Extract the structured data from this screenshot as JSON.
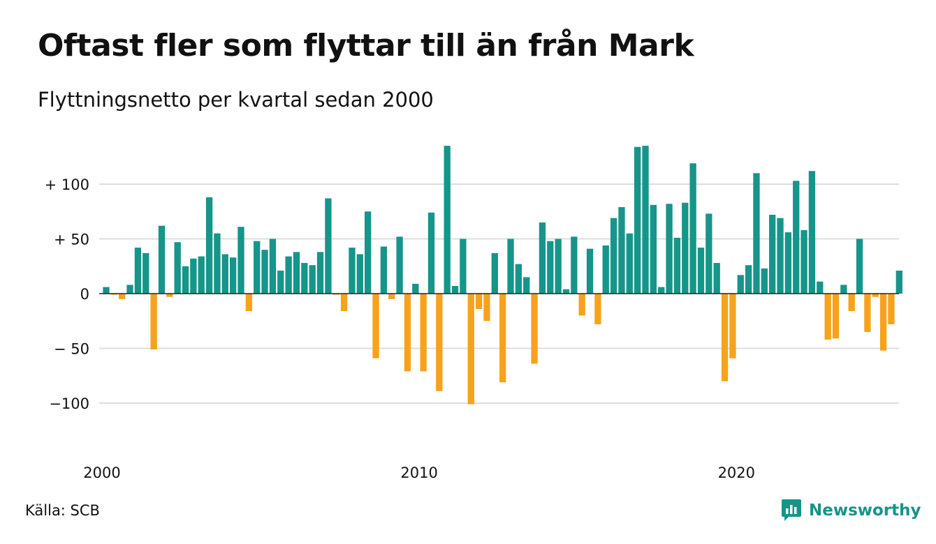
{
  "chart_data": {
    "type": "bar",
    "title": "Oftast fler som flyttar till än från Mark",
    "subtitle": "Flyttningsnetto per kvartal sedan 2000",
    "xlabel": "",
    "ylabel": "",
    "ylim": [
      -125,
      135
    ],
    "yticks": [
      {
        "value": 100,
        "label": "+ 100"
      },
      {
        "value": 50,
        "label": "+  50"
      },
      {
        "value": 0,
        "label": "0"
      },
      {
        "value": -50,
        "label": "− 50"
      },
      {
        "value": -100,
        "label": "−100"
      }
    ],
    "xticks": [
      {
        "value": 2000,
        "label": "2000"
      },
      {
        "value": 2010,
        "label": "2010"
      },
      {
        "value": 2020,
        "label": "2020"
      }
    ],
    "grid": true,
    "colors": {
      "positive": "#16958a",
      "negative": "#f7a21d",
      "grid": "#dddddd",
      "zero_line": "#222222"
    },
    "first_quarter": "2000 Q1",
    "values": [
      6,
      -1,
      -5,
      8,
      42,
      37,
      -51,
      62,
      -3,
      47,
      25,
      32,
      34,
      88,
      55,
      36,
      33,
      61,
      -16,
      48,
      40,
      50,
      21,
      34,
      38,
      28,
      26,
      38,
      87,
      -1,
      -16,
      42,
      36,
      75,
      -59,
      43,
      -5,
      52,
      -71,
      9,
      -71,
      74,
      -89,
      135,
      7,
      50,
      -101,
      -14,
      -25,
      37,
      -81,
      50,
      27,
      15,
      -64,
      65,
      48,
      50,
      4,
      52,
      -20,
      41,
      -28,
      44,
      69,
      79,
      55,
      134,
      135,
      81,
      6,
      82,
      51,
      83,
      119,
      42,
      73,
      28,
      -80,
      -59,
      17,
      26,
      110,
      23,
      72,
      69,
      56,
      103,
      58,
      112,
      11,
      -42,
      -41,
      8,
      -16,
      50,
      -35,
      -3,
      -52,
      -28,
      21
    ]
  },
  "footer": {
    "source": "Källa: SCB",
    "brand": "Newsworthy",
    "brand_color": "#15948a",
    "brand_icon": "newsworthy-logo-icon"
  }
}
